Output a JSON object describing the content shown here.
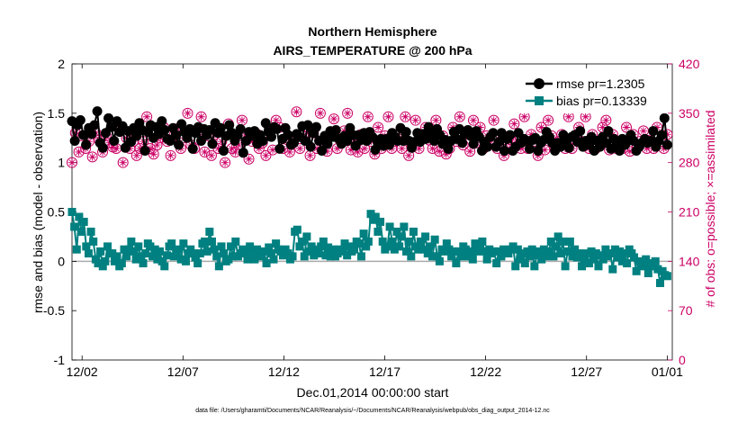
{
  "chart_data": {
    "type": "line",
    "title": [
      "Northern Hemisphere",
      "AIRS_TEMPERATURE @ 200 hPa"
    ],
    "xlabel": "Dec.01,2014 00:00:00 start",
    "ylabel": "rmse and bias (model - observation)",
    "y2label": "# of obs: o=possible; ×=assimilated",
    "footnote": "data file: /Users/gharamti/Documents/NCAR/Reanalysis/~/Documents/NCAR/Reanalysis/webpub/obs_diag_output_2014-12.nc",
    "xlim": [
      1.5,
      31.25
    ],
    "ylim": [
      -1,
      2
    ],
    "y2lim": [
      0,
      420
    ],
    "xticks": [
      2,
      7,
      12,
      17,
      22,
      27,
      31
    ],
    "xticklabels": [
      "12/02",
      "12/07",
      "12/12",
      "12/17",
      "12/22",
      "12/27",
      "01/01"
    ],
    "yticks": [
      "-1",
      "-0.5",
      "0",
      "0.5",
      "1",
      "1.5",
      "2"
    ],
    "y2ticks": [
      "0",
      "70",
      "140",
      "210",
      "280",
      "350",
      "420"
    ],
    "zero_line": 0,
    "series": [
      {
        "name": "rmse",
        "legend": "rmse pr=1.2305",
        "color": "#000000",
        "marker": "circle",
        "axis": "left",
        "values": [
          1.42,
          1.22,
          1.38,
          1.43,
          1.28,
          1.18,
          1.35,
          1.29,
          1.38,
          1.52,
          1.2,
          1.15,
          1.3,
          1.45,
          1.36,
          1.22,
          1.42,
          1.31,
          1.37,
          1.15,
          1.32,
          1.21,
          1.35,
          1.27,
          1.4,
          1.33,
          1.12,
          1.31,
          1.38,
          1.25,
          1.36,
          1.29,
          1.42,
          1.33,
          1.24,
          1.22,
          1.35,
          1.28,
          1.18,
          1.39,
          1.31,
          1.25,
          1.34,
          1.14,
          1.3,
          1.36,
          1.22,
          1.34,
          1.28,
          1.33,
          1.19,
          1.4,
          1.3,
          1.35,
          1.12,
          1.27,
          1.38,
          1.3,
          1.22,
          1.28,
          1.34,
          1.1,
          1.22,
          1.31,
          1.27,
          1.32,
          1.19,
          1.28,
          1.22,
          1.4,
          1.31,
          1.26,
          1.36,
          1.34,
          1.14,
          1.24,
          1.35,
          1.28,
          1.18,
          1.2,
          1.29,
          1.26,
          1.37,
          1.22,
          1.38,
          1.16,
          1.3,
          1.36,
          1.22,
          1.12,
          1.27,
          1.19,
          1.32,
          1.26,
          1.33,
          1.24,
          1.19,
          1.27,
          1.22,
          1.35,
          1.28,
          1.17,
          1.28,
          1.23,
          1.3,
          1.22,
          1.31,
          1.26,
          1.13,
          1.2,
          1.24,
          1.17,
          1.24,
          1.18,
          1.3,
          1.26,
          1.22,
          1.35,
          1.22,
          1.31,
          1.22,
          1.15,
          1.21,
          1.3,
          1.21,
          1.29,
          1.24,
          1.36,
          1.28,
          1.22,
          1.34,
          1.28,
          1.19,
          1.23,
          1.14,
          1.22,
          1.31,
          1.24,
          1.34,
          1.2,
          1.29,
          1.33,
          1.27,
          1.19,
          1.32,
          1.26,
          1.12,
          1.21,
          1.16,
          1.26,
          1.3,
          1.16,
          1.21,
          1.3,
          1.12,
          1.24,
          1.28,
          1.12,
          1.16,
          1.3,
          1.2,
          1.24,
          1.22,
          1.14,
          1.23,
          1.25,
          1.12,
          1.2,
          1.23,
          1.31,
          1.26,
          1.2,
          1.12,
          1.2,
          1.16,
          1.28,
          1.2,
          1.15,
          1.26,
          1.28,
          1.21,
          1.32,
          1.16,
          1.22,
          1.18,
          1.26,
          1.12,
          1.22,
          1.16,
          1.26,
          1.2,
          1.32,
          1.14,
          1.24,
          1.2,
          1.12,
          1.24,
          1.18,
          1.22,
          1.28,
          1.22,
          1.12,
          1.16,
          1.2,
          1.24,
          1.2,
          1.22,
          1.32,
          1.16,
          1.22,
          1.28,
          1.45,
          1.18
        ]
      },
      {
        "name": "bias",
        "legend": "bias pr=0.13339",
        "color": "#008080",
        "marker": "square",
        "axis": "left",
        "values": [
          0.5,
          0.35,
          0.12,
          0.45,
          0.3,
          0.4,
          0.15,
          0.08,
          0.3,
          0.2,
          0.02,
          -0.02,
          0.1,
          -0.05,
          0.0,
          0.15,
          0.08,
          0.08,
          0.0,
          0.05,
          -0.05,
          -0.02,
          0.12,
          0.05,
          0.12,
          0.2,
          0.1,
          0.02,
          0.15,
          0.05,
          -0.02,
          0.08,
          0.18,
          0.15,
          0.05,
          0.12,
          0.02,
          0.1,
          0.0,
          -0.05,
          0.06,
          0.15,
          0.18,
          0.05,
          0.1,
          0.12,
          0.02,
          0.18,
          0.0,
          0.08,
          0.12,
          0.08,
          0.04,
          -0.02,
          0.08,
          0.18,
          0.2,
          0.1,
          0.3,
          0.2,
          0.12,
          0.05,
          -0.05,
          0.15,
          0.08,
          0.0,
          0.02,
          0.15,
          0.05,
          0.2,
          0.05,
          0.08,
          0.12,
          0.1,
          0.02,
          0.15,
          0.1,
          0.02,
          0.12,
          0.08,
          0.05,
          0.1,
          -0.02,
          0.14,
          0.08,
          0.02,
          0.18,
          0.12,
          0.1,
          0.06,
          0.12,
          0.08,
          0.02,
          0.05,
          0.3,
          0.32,
          0.15,
          0.2,
          0.05,
          0.25,
          0.1,
          0.15,
          0.06,
          0.12,
          0.08,
          0.15,
          0.2,
          0.06,
          0.14,
          0.05,
          0.12,
          0.05,
          0.08,
          0.12,
          0.1,
          0.18,
          0.06,
          0.15,
          0.1,
          0.12,
          0.2,
          0.18,
          0.05,
          0.28,
          0.15,
          0.2,
          0.48,
          0.42,
          0.45,
          0.3,
          0.4,
          0.2,
          0.12,
          0.15,
          0.35,
          0.2,
          0.12,
          0.3,
          0.15,
          0.25,
          0.35,
          0.1,
          0.2,
          0.05,
          0.3,
          0.15,
          0.12,
          0.2,
          0.12,
          0.25,
          0.08,
          0.15,
          0.05,
          0.22,
          0.05,
          0.0,
          0.12,
          0.1,
          0.18,
          0.12,
          0.05,
          0.1,
          -0.02,
          0.1,
          0.05,
          0.15,
          0.12,
          0.05,
          0.1,
          0.02,
          0.18,
          0.1,
          0.12,
          0.2,
          0.1,
          0.02,
          0.12,
          0.08,
          0.1,
          -0.02,
          0.1,
          0.05,
          0.12,
          0.1,
          0.08,
          0.12,
          0.15,
          -0.05,
          0.12,
          0.02,
          0.08,
          -0.02,
          0.1,
          0.05,
          0.12,
          -0.05,
          0.06,
          0.1,
          0.02,
          0.12,
          0.05,
          0.1,
          0.2,
          0.05,
          0.15,
          0.25,
          0.08,
          0.2,
          -0.05,
          0.1,
          0.2,
          0.05,
          0.12,
          0.04,
          0.08,
          -0.05,
          0.0,
          0.08,
          -0.02,
          0.1,
          0.02,
          0.08,
          -0.05,
          0.06,
          0.02,
          0.12,
          0.05,
          0.08,
          -0.08,
          0.12,
          0.04,
          0.1,
          0.0,
          0.08,
          -0.02,
          0.12,
          0.08,
          0.04,
          -0.1,
          0.0,
          -0.02,
          -0.05,
          0.02,
          -0.12,
          -0.05,
          -0.02,
          0.0,
          -0.08,
          -0.22,
          -0.1,
          -0.14,
          -0.15
        ]
      },
      {
        "name": "obs possible",
        "color": "#cc0066",
        "marker": "circle-open",
        "axis": "right",
        "values": [
          280,
          322,
          295,
          318,
          300,
          310,
          288,
          322,
          312,
          295,
          318,
          308,
          302,
          300,
          325,
          280,
          315,
          300,
          310,
          290,
          300,
          310,
          345,
          300,
          292,
          305,
          315,
          330,
          310,
          290,
          318,
          328,
          300,
          315,
          350,
          305,
          300,
          325,
          345,
          295,
          318,
          290,
          320,
          300,
          310,
          280,
          335,
          300,
          295,
          305,
          340,
          318,
          285,
          310,
          322,
          300,
          308,
          290,
          318,
          298,
          340,
          330,
          300,
          315,
          295,
          312,
          352,
          300,
          318,
          330,
          290,
          322,
          300,
          350,
          310,
          296,
          318,
          342,
          300,
          310,
          325,
          350,
          298,
          312,
          295,
          320,
          300,
          345,
          310,
          292,
          330,
          300,
          318,
          345,
          300,
          310,
          320,
          300,
          345,
          290,
          306,
          340,
          300,
          316,
          330,
          312,
          300,
          340,
          296,
          318,
          292,
          300,
          330,
          310,
          345,
          305,
          320,
          296,
          340,
          308,
          330,
          300,
          318,
          310,
          340,
          300,
          320,
          290,
          300,
          312,
          335,
          310,
          300,
          345,
          300,
          320,
          310,
          290,
          330,
          298,
          340,
          318,
          300,
          310,
          320,
          300,
          345,
          300,
          312,
          330,
          310,
          345,
          300,
          320,
          300,
          310,
          330,
          340,
          298,
          320,
          300,
          310,
          300,
          330,
          296,
          320,
          300,
          310,
          325,
          300,
          312,
          300,
          330,
          310,
          300,
          320
        ]
      },
      {
        "name": "obs assimilated",
        "color": "#cc0066",
        "marker": "star",
        "axis": "right",
        "values": [
          280,
          322,
          295,
          318,
          300,
          310,
          288,
          322,
          312,
          295,
          318,
          308,
          302,
          300,
          325,
          280,
          315,
          300,
          310,
          290,
          300,
          310,
          345,
          300,
          292,
          305,
          315,
          330,
          310,
          290,
          318,
          328,
          300,
          315,
          350,
          305,
          300,
          325,
          345,
          295,
          318,
          290,
          320,
          300,
          310,
          280,
          335,
          300,
          295,
          305,
          340,
          318,
          285,
          310,
          322,
          300,
          308,
          290,
          318,
          298,
          340,
          330,
          300,
          315,
          295,
          312,
          352,
          300,
          318,
          330,
          290,
          322,
          300,
          350,
          310,
          296,
          318,
          342,
          300,
          310,
          325,
          350,
          298,
          312,
          295,
          320,
          300,
          345,
          310,
          292,
          330,
          300,
          318,
          345,
          300,
          310,
          320,
          300,
          345,
          290,
          306,
          340,
          300,
          316,
          330,
          312,
          300,
          340,
          296,
          318,
          292,
          300,
          330,
          310,
          345,
          305,
          320,
          296,
          340,
          308,
          330,
          300,
          318,
          310,
          340,
          300,
          320,
          290,
          300,
          312,
          335,
          310,
          300,
          345,
          300,
          320,
          310,
          290,
          330,
          298,
          340,
          318,
          300,
          310,
          320,
          300,
          345,
          300,
          312,
          330,
          310,
          345,
          300,
          320,
          300,
          310,
          330,
          340,
          298,
          320,
          300,
          310,
          300,
          330,
          296,
          320,
          300,
          310,
          325,
          300,
          312,
          300,
          330,
          310,
          300,
          320
        ]
      }
    ]
  }
}
